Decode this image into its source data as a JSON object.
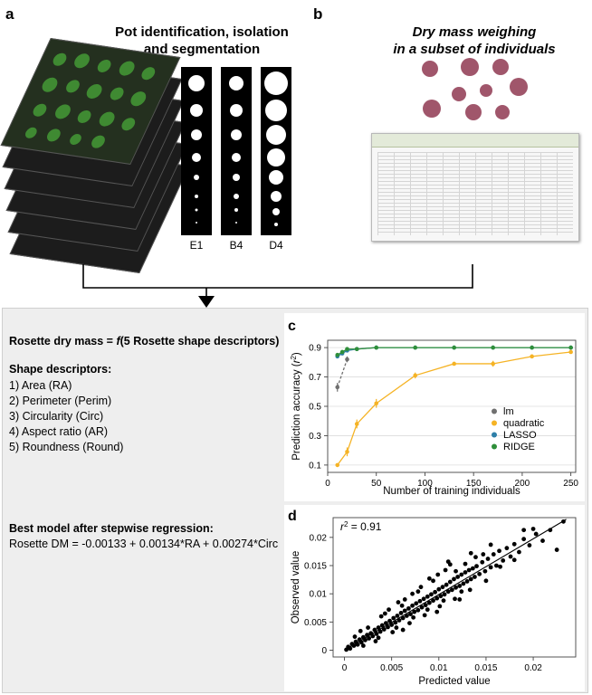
{
  "panel_a": {
    "letter": "a",
    "title_line1": "Pot identification, isolation",
    "title_line2": "and segmentation",
    "segment_labels": [
      "E1",
      "B4",
      "D4"
    ]
  },
  "panel_b": {
    "letter": "b",
    "title_line1": "Dry mass weighing",
    "title_line2": "in a subset of individuals"
  },
  "model_box": {
    "equation_prefix": "Rosette dry mass = ",
    "equation_f": "f",
    "equation_suffix": "(5 Rosette shape descriptors)",
    "descriptors_heading": "Shape descriptors:",
    "descriptors": [
      "1) Area (RA)",
      "2) Perimeter (Perim)",
      "3) Circularity (Circ)",
      "4) Aspect ratio (AR)",
      "5) Roundness (Round)"
    ],
    "best_model_heading": "Best model after stepwise regression:",
    "best_model_equation": "Rosette DM = -0.00133 + 0.00134*RA + 0.00274*Circ"
  },
  "colors": {
    "lm": "#707070",
    "quadratic": "#f5b325",
    "lasso": "#2e7fa8",
    "ridge": "#2f8f3a",
    "gray_box": "#eeeeee"
  },
  "chart_data": [
    {
      "panel": "c",
      "type": "line",
      "xlabel": "Number of training individuals",
      "ylabel_prefix": "Prediction accuracy (",
      "ylabel_r": "r",
      "ylabel_sup": "2",
      "ylabel_suffix": ")",
      "xlim": [
        0,
        255
      ],
      "ylim": [
        0.05,
        0.95
      ],
      "xticks": [
        0,
        50,
        100,
        150,
        200,
        250
      ],
      "xtick_labels": [
        "0",
        "50",
        "100",
        "150",
        "200",
        "250"
      ],
      "yticks": [
        0.1,
        0.3,
        0.5,
        0.7,
        0.9
      ],
      "ytick_labels": [
        "0.1",
        "0.3",
        "0.5",
        "0.7",
        "0.9"
      ],
      "legend": [
        "lm",
        "quadratic",
        "LASSO",
        "RIDGE"
      ],
      "series": [
        {
          "name": "lm",
          "x": [
            10,
            20
          ],
          "values": [
            0.63,
            0.82
          ],
          "err": [
            0.03,
            0.02
          ]
        },
        {
          "name": "quadratic",
          "x": [
            10,
            20,
            30,
            50,
            90,
            130,
            170,
            210,
            250
          ],
          "values": [
            0.1,
            0.19,
            0.38,
            0.52,
            0.71,
            0.79,
            0.79,
            0.84,
            0.87
          ],
          "err": [
            0.01,
            0.03,
            0.03,
            0.03,
            0.02,
            0.01,
            0.02,
            0.01,
            0.01
          ]
        },
        {
          "name": "LASSO",
          "x": [
            10,
            15,
            20,
            30,
            50,
            90,
            130,
            170,
            210,
            250
          ],
          "values": [
            0.84,
            0.86,
            0.88,
            0.89,
            0.9,
            0.9,
            0.9,
            0.9,
            0.9,
            0.9
          ],
          "err": [
            0.01,
            0.01,
            0.01,
            0.005,
            0.005,
            0.005,
            0.005,
            0.005,
            0.005,
            0.005
          ]
        },
        {
          "name": "RIDGE",
          "x": [
            10,
            15,
            20,
            30,
            50,
            90,
            130,
            170,
            210,
            250
          ],
          "values": [
            0.85,
            0.87,
            0.89,
            0.89,
            0.9,
            0.9,
            0.9,
            0.9,
            0.9,
            0.9
          ],
          "err": [
            0.01,
            0.01,
            0.01,
            0.005,
            0.005,
            0.005,
            0.005,
            0.005,
            0.005,
            0.005
          ]
        }
      ]
    },
    {
      "panel": "d",
      "type": "scatter",
      "xlabel": "Predicted value",
      "ylabel": "Observed value",
      "annotation_r": "r",
      "annotation_sup": "2",
      "annotation_value": " = 0.91",
      "xlim": [
        -0.0012,
        0.0245
      ],
      "ylim": [
        -0.0012,
        0.0235
      ],
      "xticks": [
        0,
        0.005,
        0.01,
        0.015,
        0.02
      ],
      "xtick_labels": [
        "0",
        "0.005",
        "0.01",
        "0.015",
        "0.02"
      ],
      "yticks": [
        0,
        0.005,
        0.01,
        0.015,
        0.02
      ],
      "ytick_labels": [
        "0",
        "0.005",
        "0.01",
        "0.015",
        "0.02"
      ],
      "fit_line": {
        "x": [
          0,
          0.0235
        ],
        "y": [
          0,
          0.0232
        ]
      },
      "points": [
        [
          0.0002,
          0.0001
        ],
        [
          0.0004,
          0.0006
        ],
        [
          0.0006,
          0.0003
        ],
        [
          0.0008,
          0.0011
        ],
        [
          0.001,
          0.0008
        ],
        [
          0.0012,
          0.0015
        ],
        [
          0.0014,
          0.001
        ],
        [
          0.0016,
          0.0019
        ],
        [
          0.0018,
          0.0014
        ],
        [
          0.002,
          0.0023
        ],
        [
          0.0022,
          0.0018
        ],
        [
          0.0024,
          0.0027
        ],
        [
          0.0026,
          0.0021
        ],
        [
          0.0028,
          0.003
        ],
        [
          0.003,
          0.0025
        ],
        [
          0.0032,
          0.0036
        ],
        [
          0.0034,
          0.0029
        ],
        [
          0.0036,
          0.004
        ],
        [
          0.0038,
          0.0033
        ],
        [
          0.004,
          0.0044
        ],
        [
          0.0042,
          0.0037
        ],
        [
          0.0044,
          0.0048
        ],
        [
          0.0046,
          0.0041
        ],
        [
          0.0048,
          0.0052
        ],
        [
          0.005,
          0.0045
        ],
        [
          0.0052,
          0.0057
        ],
        [
          0.0054,
          0.0049
        ],
        [
          0.0056,
          0.0061
        ],
        [
          0.0058,
          0.0053
        ],
        [
          0.006,
          0.0066
        ],
        [
          0.0062,
          0.0057
        ],
        [
          0.0064,
          0.007
        ],
        [
          0.0066,
          0.0061
        ],
        [
          0.0068,
          0.0074
        ],
        [
          0.007,
          0.0064
        ],
        [
          0.0072,
          0.0079
        ],
        [
          0.0074,
          0.0068
        ],
        [
          0.0076,
          0.0083
        ],
        [
          0.0078,
          0.0071
        ],
        [
          0.008,
          0.0087
        ],
        [
          0.0082,
          0.0076
        ],
        [
          0.0084,
          0.0091
        ],
        [
          0.0086,
          0.008
        ],
        [
          0.0088,
          0.0095
        ],
        [
          0.009,
          0.0084
        ],
        [
          0.0092,
          0.0099
        ],
        [
          0.0094,
          0.0088
        ],
        [
          0.0096,
          0.0103
        ],
        [
          0.0098,
          0.0092
        ],
        [
          0.01,
          0.0108
        ],
        [
          0.0102,
          0.0096
        ],
        [
          0.0104,
          0.0112
        ],
        [
          0.0106,
          0.0099
        ],
        [
          0.0108,
          0.0116
        ],
        [
          0.011,
          0.0104
        ],
        [
          0.0112,
          0.0121
        ],
        [
          0.0114,
          0.0107
        ],
        [
          0.0116,
          0.0126
        ],
        [
          0.0118,
          0.0111
        ],
        [
          0.012,
          0.013
        ],
        [
          0.0122,
          0.0114
        ],
        [
          0.0124,
          0.0134
        ],
        [
          0.0126,
          0.0118
        ],
        [
          0.0128,
          0.0138
        ],
        [
          0.013,
          0.0122
        ],
        [
          0.0132,
          0.0142
        ],
        [
          0.0134,
          0.0126
        ],
        [
          0.0136,
          0.0145
        ],
        [
          0.0138,
          0.013
        ],
        [
          0.014,
          0.0149
        ],
        [
          0.0143,
          0.0135
        ],
        [
          0.0146,
          0.0156
        ],
        [
          0.0149,
          0.014
        ],
        [
          0.0152,
          0.0162
        ],
        [
          0.0155,
          0.0147
        ],
        [
          0.0158,
          0.017
        ],
        [
          0.0161,
          0.015
        ],
        [
          0.0164,
          0.0176
        ],
        [
          0.0168,
          0.0159
        ],
        [
          0.0172,
          0.0181
        ],
        [
          0.0176,
          0.0166
        ],
        [
          0.018,
          0.0188
        ],
        [
          0.0185,
          0.0174
        ],
        [
          0.019,
          0.0197
        ],
        [
          0.0196,
          0.0186
        ],
        [
          0.0203,
          0.0206
        ],
        [
          0.021,
          0.0194
        ],
        [
          0.0218,
          0.0213
        ],
        [
          0.0011,
          0.0024
        ],
        [
          0.0025,
          0.004
        ],
        [
          0.0039,
          0.006
        ],
        [
          0.0047,
          0.0072
        ],
        [
          0.0057,
          0.0085
        ],
        [
          0.0064,
          0.009
        ],
        [
          0.0072,
          0.01
        ],
        [
          0.0081,
          0.0112
        ],
        [
          0.009,
          0.0127
        ],
        [
          0.0099,
          0.0134
        ],
        [
          0.0107,
          0.0142
        ],
        [
          0.0118,
          0.014
        ],
        [
          0.0128,
          0.0153
        ],
        [
          0.0139,
          0.0165
        ],
        [
          0.0033,
          0.0016
        ],
        [
          0.0051,
          0.0032
        ],
        [
          0.0069,
          0.0048
        ],
        [
          0.0085,
          0.0062
        ],
        [
          0.0101,
          0.0078
        ],
        [
          0.0117,
          0.0091
        ],
        [
          0.0133,
          0.0107
        ],
        [
          0.015,
          0.0123
        ],
        [
          0.0043,
          0.0065
        ],
        [
          0.0061,
          0.0079
        ],
        [
          0.0078,
          0.0104
        ],
        [
          0.0094,
          0.0123
        ],
        [
          0.0112,
          0.0152
        ],
        [
          0.0134,
          0.0172
        ],
        [
          0.0155,
          0.0187
        ],
        [
          0.0017,
          0.0034
        ],
        [
          0.002,
          0.0008
        ],
        [
          0.0036,
          0.0022
        ],
        [
          0.0055,
          0.004
        ],
        [
          0.0073,
          0.0058
        ],
        [
          0.0088,
          0.0072
        ],
        [
          0.0105,
          0.0088
        ],
        [
          0.0124,
          0.0104
        ],
        [
          0.019,
          0.0213
        ],
        [
          0.02,
          0.0215
        ],
        [
          0.0232,
          0.0228
        ],
        [
          0.0225,
          0.0178
        ],
        [
          0.0165,
          0.0148
        ],
        [
          0.018,
          0.016
        ],
        [
          0.0147,
          0.017
        ],
        [
          0.0122,
          0.009
        ],
        [
          0.0098,
          0.0068
        ],
        [
          0.0062,
          0.0036
        ],
        [
          0.011,
          0.0157
        ]
      ]
    }
  ]
}
